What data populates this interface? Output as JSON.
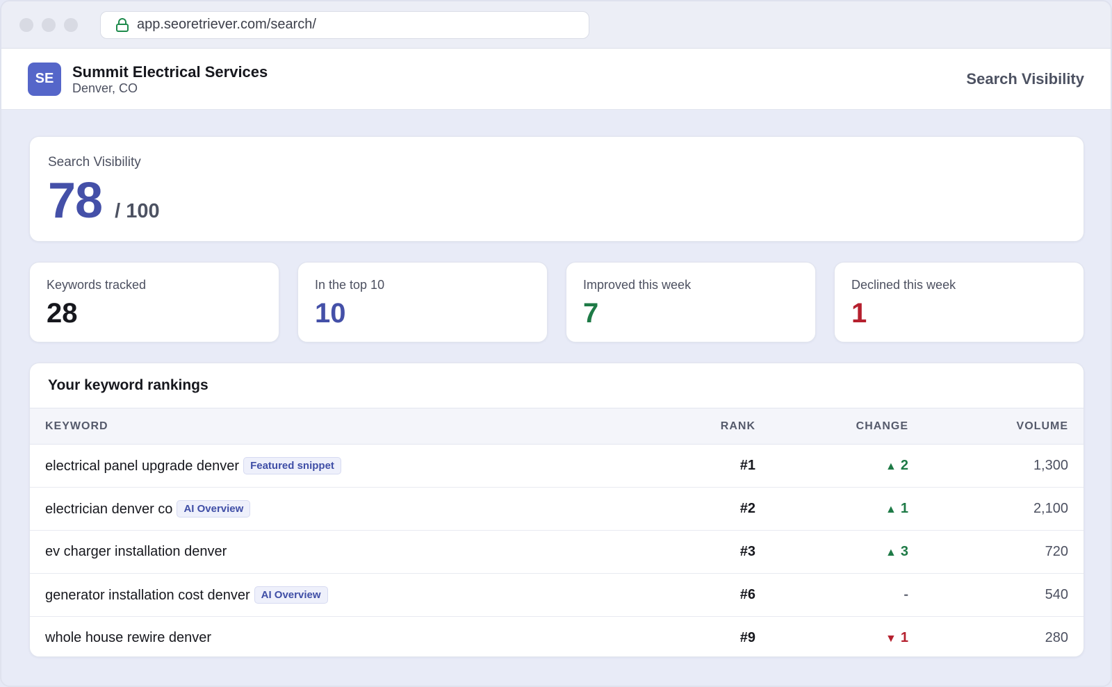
{
  "browser": {
    "url": "app.seoretriever.com/search/"
  },
  "header": {
    "avatar_initials": "SE",
    "business_name": "Summit Electrical Services",
    "location": "Denver, CO",
    "page_title": "Search Visibility"
  },
  "score": {
    "label": "Search Visibility",
    "value": "78",
    "max": "/ 100"
  },
  "stats": [
    {
      "label": "Keywords tracked",
      "value": "28",
      "color": "#16171d"
    },
    {
      "label": "In the top 10",
      "value": "10",
      "color": "#4450a8"
    },
    {
      "label": "Improved this week",
      "value": "7",
      "color": "#1e7a46"
    },
    {
      "label": "Declined this week",
      "value": "1",
      "color": "#b5202e"
    }
  ],
  "rankings": {
    "title": "Your keyword rankings",
    "columns": {
      "keyword": "Keyword",
      "rank": "Rank",
      "change": "Change",
      "volume": "Volume"
    },
    "rows": [
      {
        "keyword": "electrical panel upgrade denver",
        "badge": "Featured snippet",
        "rank": "#1",
        "change_dir": "up",
        "change": "2",
        "volume": "1,300"
      },
      {
        "keyword": "electrician denver co",
        "badge": "AI Overview",
        "rank": "#2",
        "change_dir": "up",
        "change": "1",
        "volume": "2,100"
      },
      {
        "keyword": "ev charger installation denver",
        "badge": "",
        "rank": "#3",
        "change_dir": "up",
        "change": "3",
        "volume": "720"
      },
      {
        "keyword": "generator installation cost denver",
        "badge": "AI Overview",
        "rank": "#6",
        "change_dir": "flat",
        "change": "-",
        "volume": "540"
      },
      {
        "keyword": "whole house rewire denver",
        "badge": "",
        "rank": "#9",
        "change_dir": "down",
        "change": "1",
        "volume": "280"
      }
    ]
  }
}
